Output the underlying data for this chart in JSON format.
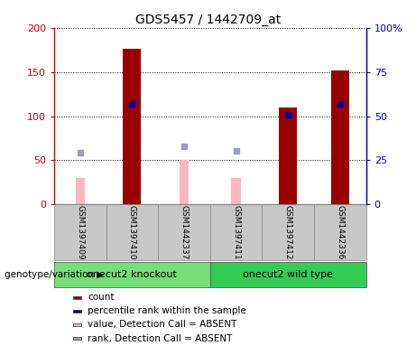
{
  "title": "GDS5457 / 1442709_at",
  "samples": [
    "GSM1397409",
    "GSM1397410",
    "GSM1442337",
    "GSM1397411",
    "GSM1397412",
    "GSM1442336"
  ],
  "groups": [
    "onecut2 knockout",
    "onecut2 knockout",
    "onecut2 knockout",
    "onecut2 wild type",
    "onecut2 wild type",
    "onecut2 wild type"
  ],
  "count_values": [
    null,
    177,
    null,
    null,
    110,
    152
  ],
  "percentile_values": [
    null,
    57,
    null,
    null,
    51,
    57
  ],
  "absent_value_values": [
    30,
    null,
    50,
    30,
    null,
    null
  ],
  "absent_rank_values": [
    29,
    null,
    33,
    30,
    null,
    null
  ],
  "ylim_left": [
    0,
    200
  ],
  "ylim_right": [
    0,
    100
  ],
  "yticks_left": [
    0,
    50,
    100,
    150,
    200
  ],
  "yticks_right": [
    0,
    25,
    50,
    75,
    100
  ],
  "ytick_labels_left": [
    "0",
    "50",
    "100",
    "150",
    "200"
  ],
  "ytick_labels_right": [
    "0",
    "25",
    "50",
    "75",
    "100%"
  ],
  "count_color": "#990000",
  "percentile_color": "#000099",
  "absent_value_color": "#FFB6C1",
  "absent_rank_color": "#9999CC",
  "left_axis_color": "#CC0000",
  "right_axis_color": "#0000CC",
  "bar_width": 0.35,
  "absent_bar_width": 0.18,
  "group_colors": {
    "onecut2 knockout": "#77DD77",
    "onecut2 wild type": "#33CC55"
  }
}
